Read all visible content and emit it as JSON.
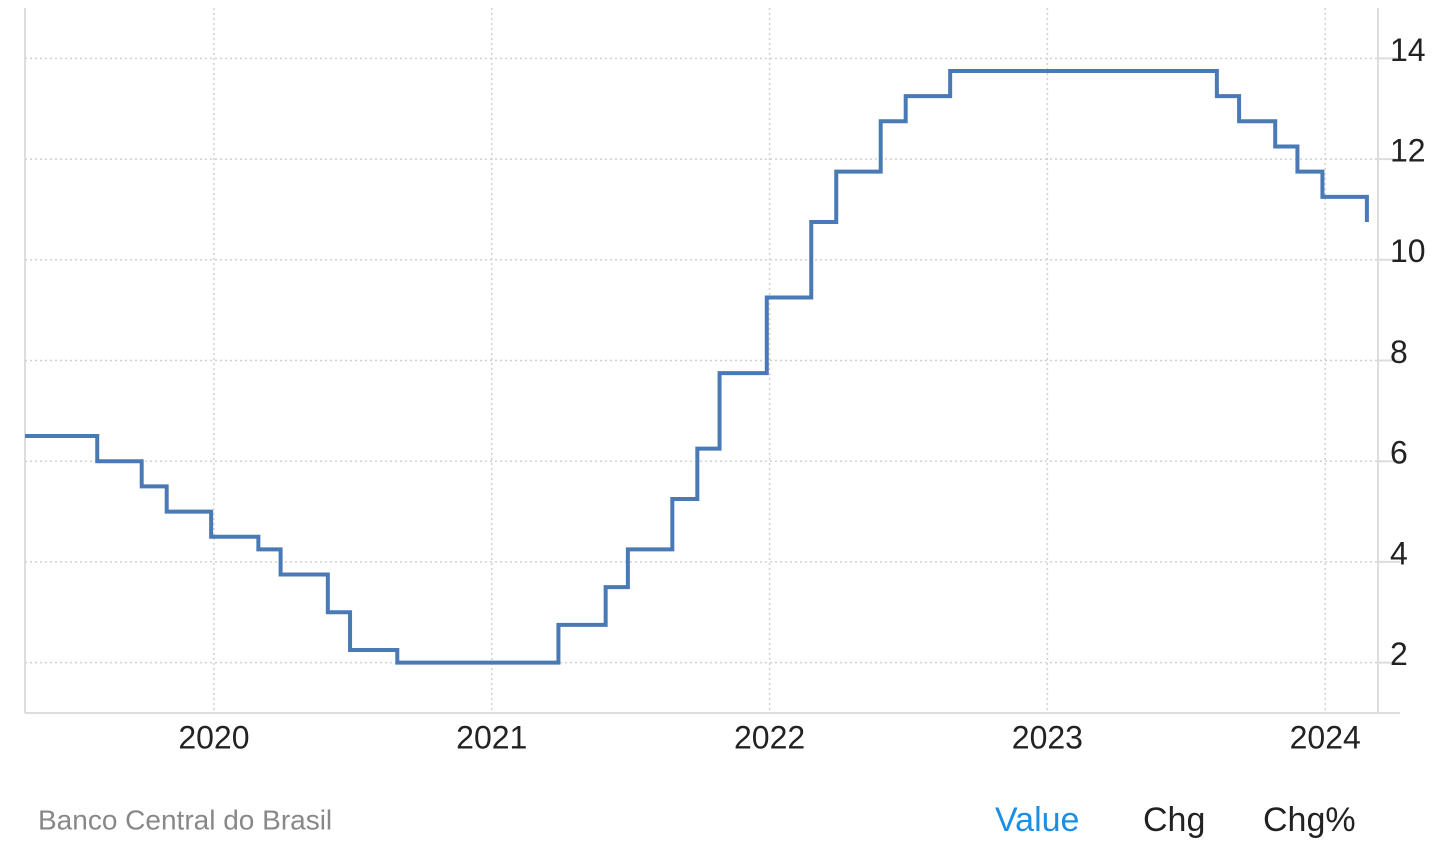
{
  "chart_data": {
    "type": "line",
    "step": "post",
    "x": [
      2019.32,
      2019.58,
      2019.74,
      2019.83,
      2019.99,
      2020.16,
      2020.24,
      2020.41,
      2020.49,
      2020.66,
      2021.24,
      2021.41,
      2021.49,
      2021.65,
      2021.74,
      2021.82,
      2021.99,
      2022.15,
      2022.24,
      2022.4,
      2022.49,
      2022.65,
      2023.61,
      2023.69,
      2023.82,
      2023.9,
      2023.99,
      2024.15
    ],
    "series": [
      {
        "color": "#4a7ab5",
        "values": [
          6.5,
          6.0,
          5.5,
          5.0,
          4.5,
          4.25,
          3.75,
          3.0,
          2.25,
          2.0,
          2.75,
          3.5,
          4.25,
          5.25,
          6.25,
          7.75,
          9.25,
          10.75,
          11.75,
          12.75,
          13.25,
          13.75,
          13.25,
          12.75,
          12.25,
          11.75,
          11.25,
          10.75
        ]
      }
    ],
    "xlim": [
      2019.32,
      2024.19
    ],
    "ylim": [
      1,
      15
    ],
    "xticks": [
      2020,
      2021,
      2022,
      2023,
      2024
    ],
    "yticks": [
      2,
      4,
      6,
      8,
      10,
      12,
      14
    ],
    "grid": true
  },
  "footer": {
    "source": "Banco Central do Brasil",
    "tabs": [
      "Value",
      "Chg",
      "Chg%"
    ],
    "active": 0
  }
}
